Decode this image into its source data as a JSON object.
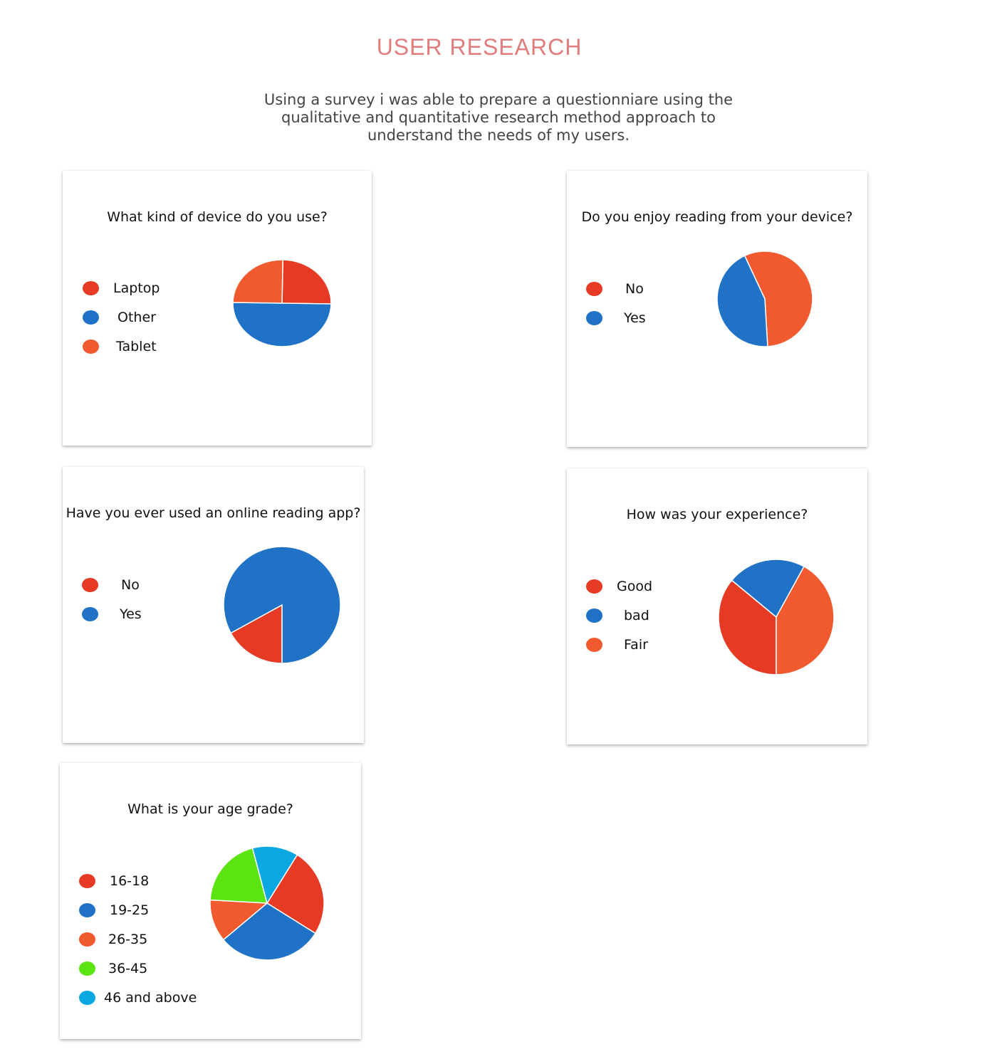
{
  "header": {
    "title": "USER RESEARCH",
    "intro": "Using a survey i was able to prepare a questionniare using the qualitative and quantitative research method approach to understand the needs of my users."
  },
  "colors": {
    "title": "#e07c7c",
    "red": "#e63a24",
    "blue": "#1f72c6",
    "orange": "#f05a2e",
    "green": "#5ce312",
    "cyan": "#0aa7e0"
  },
  "chart_data": [
    {
      "type": "pie",
      "title": "What kind of device do you use?",
      "categories": [
        "Laptop",
        "Other",
        "Tablet"
      ],
      "values": [
        25,
        50,
        25
      ],
      "colors": [
        "#e63a24",
        "#1f72c6",
        "#f05a2e"
      ],
      "legend": "left"
    },
    {
      "type": "pie",
      "title": "Do you enjoy reading from your device?",
      "categories": [
        "No",
        "Yes"
      ],
      "values": [
        56,
        44
      ],
      "colors": [
        "#f05a2e",
        "#1f72c6"
      ],
      "legend": "left"
    },
    {
      "type": "pie",
      "title": "Have you ever used an online reading app?",
      "categories": [
        "No",
        "Yes"
      ],
      "values": [
        17,
        83
      ],
      "colors": [
        "#e63a24",
        "#1f72c6"
      ],
      "legend": "left"
    },
    {
      "type": "pie",
      "title": "How was your experience?",
      "categories": [
        "Good",
        "bad",
        "Fair"
      ],
      "values": [
        36,
        22,
        42
      ],
      "colors": [
        "#e63a24",
        "#1f72c6",
        "#f05a2e"
      ],
      "legend": "left"
    },
    {
      "type": "pie",
      "title": "What is your age grade?",
      "categories": [
        "16-18",
        "19-25",
        "26-35",
        "36-45",
        "46 and above"
      ],
      "values": [
        25,
        30,
        12,
        20,
        13
      ],
      "colors": [
        "#e63a24",
        "#1f72c6",
        "#f05a2e",
        "#5ce312",
        "#0aa7e0"
      ],
      "legend": "left"
    }
  ]
}
